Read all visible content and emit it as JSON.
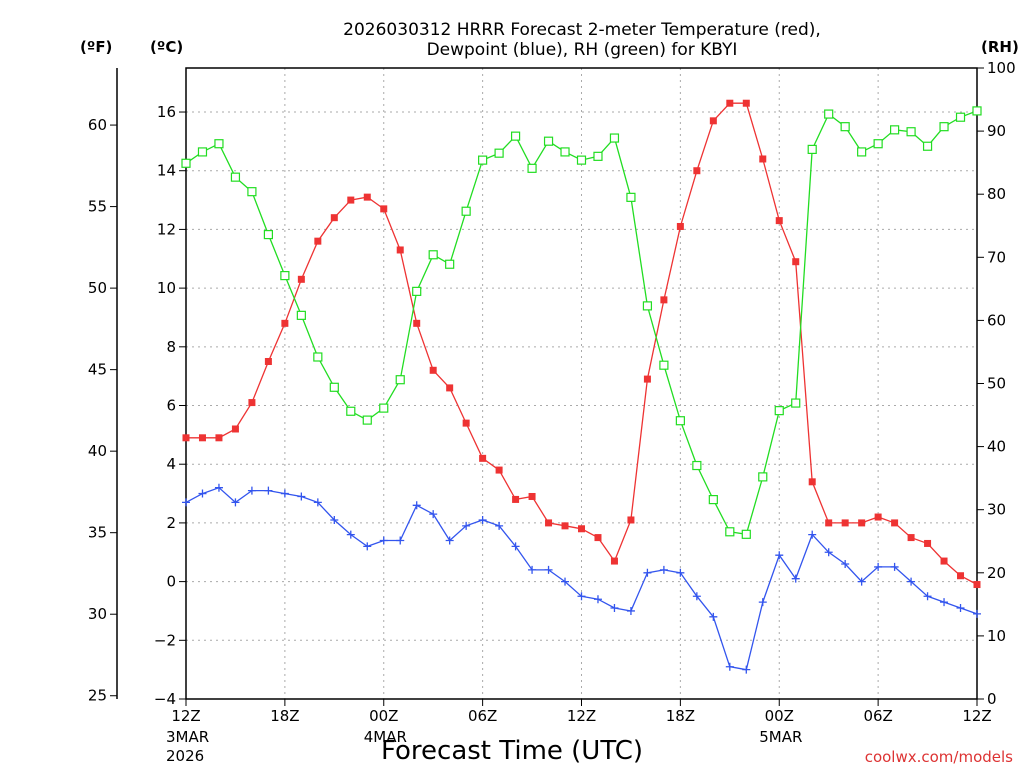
{
  "chart_data": {
    "type": "line",
    "title": "2026030312 HRRR Forecast 2-meter Temperature (red),",
    "subtitle": "Dewpoint (blue), RH (green) for KBYI",
    "xlabel": "Forecast Time (UTC)",
    "credit": "coolwx.com/models",
    "unit_labels": {
      "fahrenheit": "(ºF)",
      "celsius": "(ºC)",
      "rh": "(RH)"
    },
    "x_range": [
      0,
      48
    ],
    "ylim_c": [
      -4,
      17.5
    ],
    "ylim_f": [
      24.8,
      63.5
    ],
    "ylim_rh": [
      0,
      100
    ],
    "x_ticks": [
      {
        "x": 0,
        "label": "12Z",
        "date": "3MAR",
        "year": "2026"
      },
      {
        "x": 6,
        "label": "18Z",
        "date": "",
        "year": ""
      },
      {
        "x": 12,
        "label": "00Z",
        "date": "4MAR",
        "year": ""
      },
      {
        "x": 18,
        "label": "06Z",
        "date": "",
        "year": ""
      },
      {
        "x": 24,
        "label": "12Z",
        "date": "",
        "year": ""
      },
      {
        "x": 30,
        "label": "18Z",
        "date": "",
        "year": ""
      },
      {
        "x": 36,
        "label": "00Z",
        "date": "5MAR",
        "year": ""
      },
      {
        "x": 42,
        "label": "06Z",
        "date": "",
        "year": ""
      },
      {
        "x": 48,
        "label": "12Z",
        "date": "",
        "year": ""
      }
    ],
    "y_ticks_c": [
      "-4",
      "-2",
      "0",
      "2",
      "4",
      "6",
      "8",
      "10",
      "12",
      "14",
      "16"
    ],
    "y_ticks_f": [
      "25",
      "30",
      "35",
      "40",
      "45",
      "50",
      "55",
      "60"
    ],
    "y_ticks_rh": [
      "0",
      "10",
      "20",
      "30",
      "40",
      "50",
      "60",
      "70",
      "80",
      "90",
      "100"
    ],
    "series": [
      {
        "name": "Temperature",
        "axis": "celsius",
        "color": "#ee3333",
        "marker": "filled-square",
        "values": [
          4.9,
          4.9,
          4.9,
          5.2,
          6.1,
          7.5,
          8.8,
          10.3,
          11.6,
          12.4,
          13.0,
          13.1,
          12.7,
          11.3,
          8.8,
          7.2,
          6.6,
          5.4,
          4.2,
          3.8,
          2.8,
          2.9,
          2.0,
          1.9,
          1.8,
          1.5,
          0.7,
          2.1,
          6.9,
          9.6,
          12.1,
          14.0,
          15.7,
          16.3,
          16.3,
          14.4,
          12.3,
          10.9,
          3.4,
          2.0,
          2.0,
          2.0,
          2.2,
          2.0,
          1.5,
          1.3,
          0.7,
          0.2,
          -0.1
        ]
      },
      {
        "name": "Dewpoint",
        "axis": "celsius",
        "color": "#3355ee",
        "marker": "plus",
        "values": [
          2.7,
          3.0,
          3.2,
          2.7,
          3.1,
          3.1,
          3.0,
          2.9,
          2.7,
          2.1,
          1.6,
          1.2,
          1.4,
          1.4,
          2.6,
          2.3,
          1.4,
          1.9,
          2.1,
          1.9,
          1.2,
          0.4,
          0.4,
          0.0,
          -0.5,
          -0.6,
          -0.9,
          -1.0,
          0.3,
          0.4,
          0.3,
          -0.5,
          -1.2,
          -2.9,
          -3.0,
          -0.7,
          0.9,
          0.1,
          1.6,
          1.0,
          0.6,
          0.0,
          0.5,
          0.5,
          0.0,
          -0.5,
          -0.7,
          -0.9,
          -1.1
        ]
      },
      {
        "name": "RH",
        "axis": "rh",
        "color": "#22dd22",
        "marker": "open-square",
        "values": [
          84.9,
          86.7,
          88.0,
          82.7,
          80.4,
          73.6,
          67.1,
          60.8,
          54.2,
          49.4,
          45.6,
          44.2,
          46.1,
          50.6,
          64.6,
          70.4,
          68.9,
          77.3,
          85.4,
          86.5,
          89.2,
          84.1,
          88.4,
          86.7,
          85.4,
          86.0,
          88.9,
          79.5,
          62.3,
          52.9,
          44.1,
          37.0,
          31.6,
          26.5,
          26.1,
          35.2,
          45.7,
          46.9,
          87.1,
          92.7,
          90.7,
          86.7,
          88.0,
          90.2,
          89.9,
          87.6,
          90.7,
          92.2,
          93.2
        ]
      }
    ]
  }
}
